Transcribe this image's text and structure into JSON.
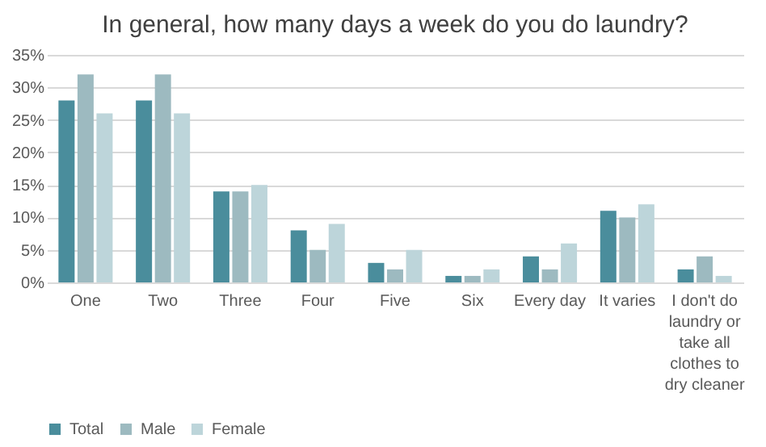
{
  "chart_data": {
    "type": "bar",
    "title": "In general, how many days a week do you do laundry?",
    "categories": [
      "One",
      "Two",
      "Three",
      "Four",
      "Five",
      "Six",
      "Every day",
      "It varies",
      "I don't do laundry or take all clothes to dry cleaner"
    ],
    "series": [
      {
        "name": "Total",
        "color": "#4a8d9c",
        "values": [
          28,
          28,
          14,
          8,
          3,
          1,
          4,
          11,
          2
        ]
      },
      {
        "name": "Male",
        "color": "#9dbac0",
        "values": [
          32,
          32,
          14,
          5,
          2,
          1,
          2,
          10,
          4
        ]
      },
      {
        "name": "Female",
        "color": "#bdd5da",
        "values": [
          26,
          26,
          15,
          9,
          5,
          2,
          6,
          12,
          1
        ]
      }
    ],
    "ylim": [
      0,
      35
    ],
    "yticks": [
      {
        "value": 0,
        "label": "0%"
      },
      {
        "value": 5,
        "label": "5%"
      },
      {
        "value": 10,
        "label": "10%"
      },
      {
        "value": 15,
        "label": "15%"
      },
      {
        "value": 20,
        "label": "20%"
      },
      {
        "value": 25,
        "label": "25%"
      },
      {
        "value": 30,
        "label": "30%"
      },
      {
        "value": 35,
        "label": "35%"
      }
    ],
    "grid": "y",
    "legend": "bottom"
  }
}
